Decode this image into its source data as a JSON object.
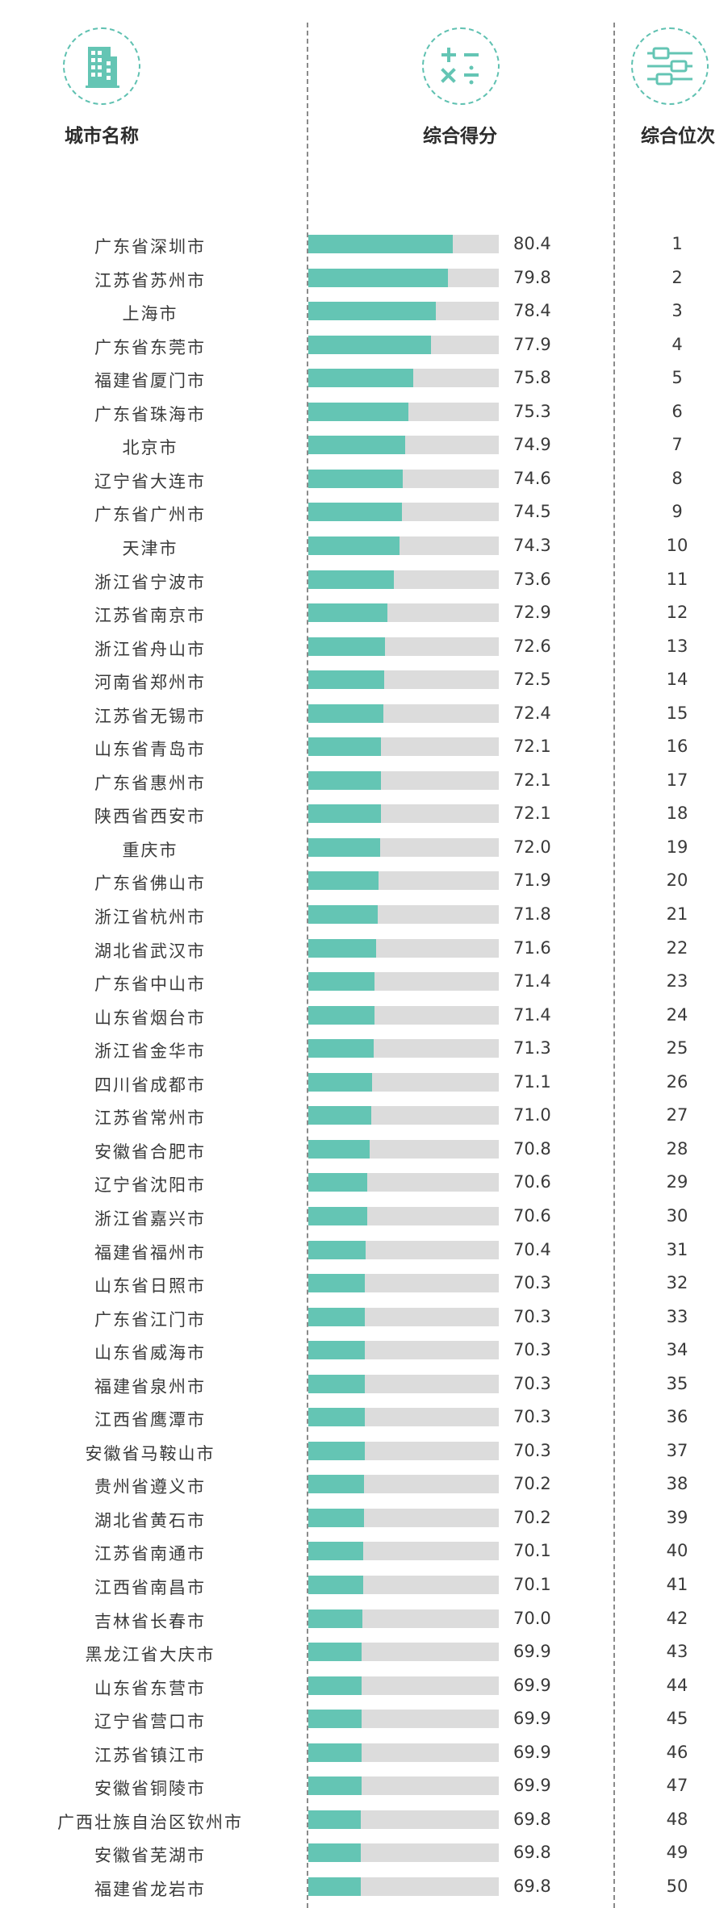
{
  "headers": {
    "city": "城市名称",
    "score": "综合得分",
    "rank": "综合位次"
  },
  "icons": {
    "city": "building-icon",
    "score": "math-operators-icon",
    "rank": "sliders-icon"
  },
  "colors": {
    "accent": "#64c5b4",
    "bar_track": "#dcdcdc"
  },
  "chart_data": {
    "type": "bar",
    "orientation": "horizontal",
    "title": "",
    "xlabel": "",
    "ylabel": "",
    "rows": [
      {
        "city": "广东省深圳市",
        "score": 80.4,
        "rank": 1
      },
      {
        "city": "江苏省苏州市",
        "score": 79.8,
        "rank": 2
      },
      {
        "city": "上海市",
        "score": 78.4,
        "rank": 3
      },
      {
        "city": "广东省东莞市",
        "score": 77.9,
        "rank": 4
      },
      {
        "city": "福建省厦门市",
        "score": 75.8,
        "rank": 5
      },
      {
        "city": "广东省珠海市",
        "score": 75.3,
        "rank": 6
      },
      {
        "city": "北京市",
        "score": 74.9,
        "rank": 7
      },
      {
        "city": "辽宁省大连市",
        "score": 74.6,
        "rank": 8
      },
      {
        "city": "广东省广州市",
        "score": 74.5,
        "rank": 9
      },
      {
        "city": "天津市",
        "score": 74.3,
        "rank": 10
      },
      {
        "city": "浙江省宁波市",
        "score": 73.6,
        "rank": 11
      },
      {
        "city": "江苏省南京市",
        "score": 72.9,
        "rank": 12
      },
      {
        "city": "浙江省舟山市",
        "score": 72.6,
        "rank": 13
      },
      {
        "city": "河南省郑州市",
        "score": 72.5,
        "rank": 14
      },
      {
        "city": "江苏省无锡市",
        "score": 72.4,
        "rank": 15
      },
      {
        "city": "山东省青岛市",
        "score": 72.1,
        "rank": 16
      },
      {
        "city": "广东省惠州市",
        "score": 72.1,
        "rank": 17
      },
      {
        "city": "陕西省西安市",
        "score": 72.1,
        "rank": 18
      },
      {
        "city": "重庆市",
        "score": 72.0,
        "rank": 19
      },
      {
        "city": "广东省佛山市",
        "score": 71.9,
        "rank": 20
      },
      {
        "city": "浙江省杭州市",
        "score": 71.8,
        "rank": 21
      },
      {
        "city": "湖北省武汉市",
        "score": 71.6,
        "rank": 22
      },
      {
        "city": "广东省中山市",
        "score": 71.4,
        "rank": 23
      },
      {
        "city": "山东省烟台市",
        "score": 71.4,
        "rank": 24
      },
      {
        "city": "浙江省金华市",
        "score": 71.3,
        "rank": 25
      },
      {
        "city": "四川省成都市",
        "score": 71.1,
        "rank": 26
      },
      {
        "city": "江苏省常州市",
        "score": 71.0,
        "rank": 27
      },
      {
        "city": "安徽省合肥市",
        "score": 70.8,
        "rank": 28
      },
      {
        "city": "辽宁省沈阳市",
        "score": 70.6,
        "rank": 29
      },
      {
        "city": "浙江省嘉兴市",
        "score": 70.6,
        "rank": 30
      },
      {
        "city": "福建省福州市",
        "score": 70.4,
        "rank": 31
      },
      {
        "city": "山东省日照市",
        "score": 70.3,
        "rank": 32
      },
      {
        "city": "广东省江门市",
        "score": 70.3,
        "rank": 33
      },
      {
        "city": "山东省威海市",
        "score": 70.3,
        "rank": 34
      },
      {
        "city": "福建省泉州市",
        "score": 70.3,
        "rank": 35
      },
      {
        "city": "江西省鹰潭市",
        "score": 70.3,
        "rank": 36
      },
      {
        "city": "安徽省马鞍山市",
        "score": 70.3,
        "rank": 37
      },
      {
        "city": "贵州省遵义市",
        "score": 70.2,
        "rank": 38
      },
      {
        "city": "湖北省黄石市",
        "score": 70.2,
        "rank": 39
      },
      {
        "city": "江苏省南通市",
        "score": 70.1,
        "rank": 40
      },
      {
        "city": "江西省南昌市",
        "score": 70.1,
        "rank": 41
      },
      {
        "city": "吉林省长春市",
        "score": 70.0,
        "rank": 42
      },
      {
        "city": "黑龙江省大庆市",
        "score": 69.9,
        "rank": 43
      },
      {
        "city": "山东省东营市",
        "score": 69.9,
        "rank": 44
      },
      {
        "city": "辽宁省营口市",
        "score": 69.9,
        "rank": 45
      },
      {
        "city": "江苏省镇江市",
        "score": 69.9,
        "rank": 46
      },
      {
        "city": "安徽省铜陵市",
        "score": 69.9,
        "rank": 47
      },
      {
        "city": "广西壮族自治区钦州市",
        "score": 69.8,
        "rank": 48
      },
      {
        "city": "安徽省芜湖市",
        "score": 69.8,
        "rank": 49
      },
      {
        "city": "福建省龙岩市",
        "score": 69.8,
        "rank": 50
      }
    ]
  }
}
